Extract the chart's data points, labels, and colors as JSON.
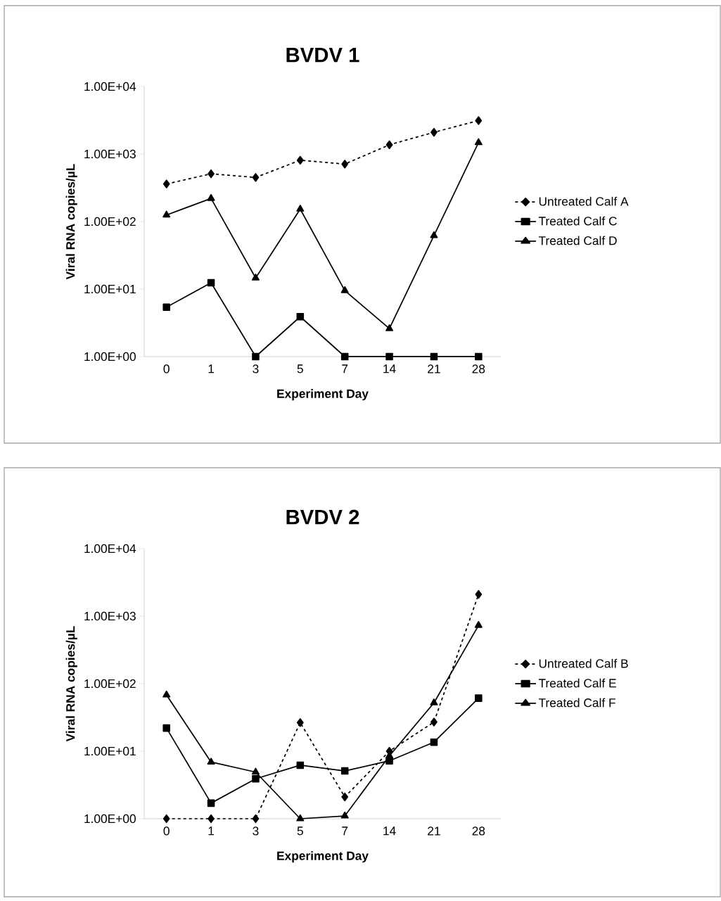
{
  "chart_data": [
    {
      "type": "line",
      "title": "BVDV 1",
      "xlabel": "Experiment Day",
      "ylabel": "Viral RNA copies/µL",
      "categories": [
        "0",
        "1",
        "3",
        "5",
        "7",
        "14",
        "21",
        "28"
      ],
      "log": "y",
      "ylim": [
        1,
        10000
      ],
      "yticks": [
        {
          "value": 1,
          "label": "1.00E+00"
        },
        {
          "value": 10,
          "label": "1.00E+01"
        },
        {
          "value": 100,
          "label": "1.00E+02"
        },
        {
          "value": 1000,
          "label": "1.00E+03"
        },
        {
          "value": 10000,
          "label": "1.00E+04"
        }
      ],
      "grid": false,
      "legend": "right",
      "series": [
        {
          "name": "Untreated Calf A",
          "color": "#000000",
          "marker": "diamond",
          "line_style": "dashed",
          "values": [
            360,
            510,
            450,
            810,
            710,
            1370,
            2100,
            3130
          ]
        },
        {
          "name": "Treated Calf C",
          "color": "#000000",
          "marker": "square",
          "line_style": "solid",
          "values": [
            5.4,
            12.4,
            1,
            3.9,
            1,
            1,
            1,
            1
          ]
        },
        {
          "name": "Treated Calf D",
          "color": "#000000",
          "marker": "triangle",
          "line_style": "solid",
          "values": [
            125,
            220,
            14.6,
            153,
            9.5,
            2.6,
            62,
            1480
          ]
        }
      ]
    },
    {
      "type": "line",
      "title": "BVDV 2",
      "xlabel": "Experiment Day",
      "ylabel": "Viral RNA copies/µL",
      "categories": [
        "0",
        "1",
        "3",
        "5",
        "7",
        "14",
        "21",
        "28"
      ],
      "log": "y",
      "ylim": [
        1,
        10000
      ],
      "yticks": [
        {
          "value": 1,
          "label": "1.00E+00"
        },
        {
          "value": 10,
          "label": "1.00E+01"
        },
        {
          "value": 100,
          "label": "1.00E+02"
        },
        {
          "value": 1000,
          "label": "1.00E+03"
        },
        {
          "value": 10000,
          "label": "1.00E+04"
        }
      ],
      "grid": false,
      "legend": "right",
      "series": [
        {
          "name": "Untreated Calf B",
          "color": "#000000",
          "marker": "diamond",
          "line_style": "dashed",
          "values": [
            1,
            1,
            1,
            26.5,
            2.1,
            10,
            27,
            2100
          ]
        },
        {
          "name": "Treated Calf E",
          "color": "#000000",
          "marker": "square",
          "line_style": "solid",
          "values": [
            22,
            1.7,
            3.9,
            6.2,
            5.1,
            7.2,
            13.6,
            61
          ]
        },
        {
          "name": "Treated Calf F",
          "color": "#000000",
          "marker": "triangle",
          "line_style": "solid",
          "values": [
            68,
            6.9,
            4.9,
            1,
            1.1,
            8.5,
            52,
            730
          ]
        }
      ]
    }
  ]
}
